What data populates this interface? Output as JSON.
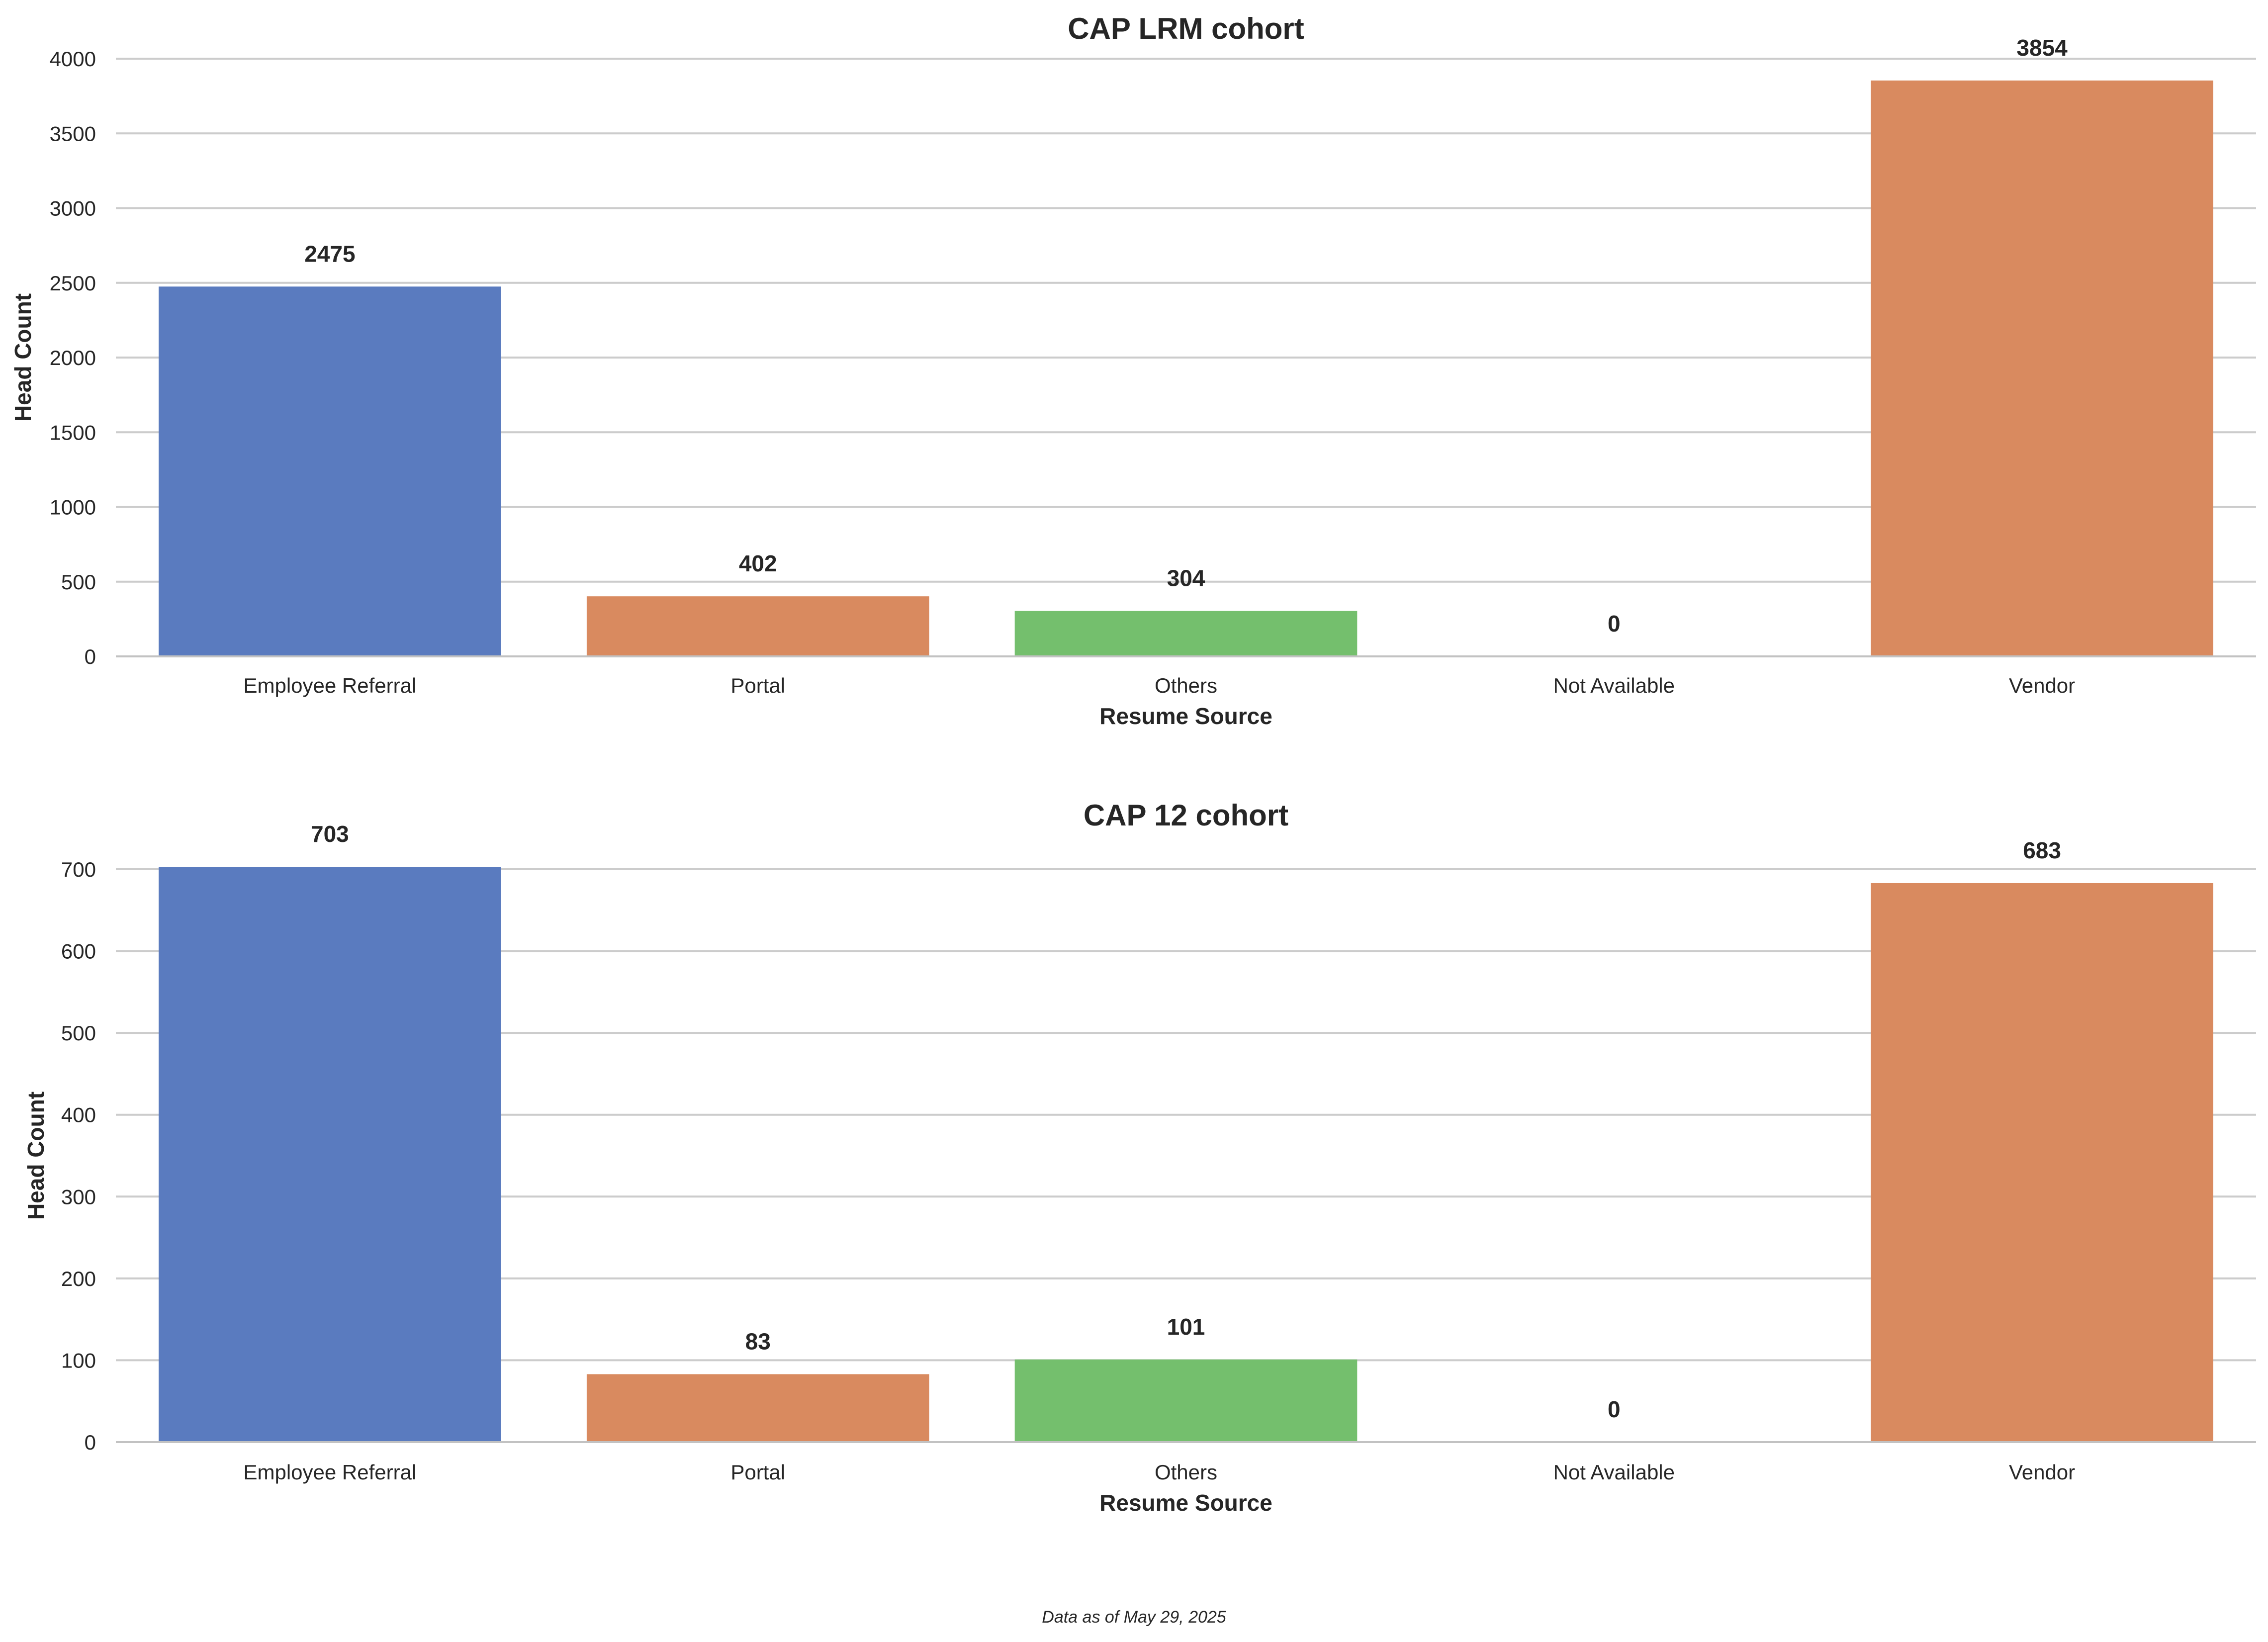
{
  "footnote": "Data as of May 29, 2025",
  "colors": {
    "blue": "#5a7bbf",
    "orange": "#d98a5f",
    "green": "#74bf6d",
    "grid": "#cccccc",
    "text": "#262626"
  },
  "chart_data": [
    {
      "type": "bar",
      "title": "CAP LRM cohort",
      "xlabel": "Resume Source",
      "ylabel": "Head Count",
      "categories": [
        "Employee Referral",
        "Portal",
        "Others",
        "Not Available",
        "Vendor"
      ],
      "values": [
        2475,
        402,
        304,
        0,
        3854
      ],
      "value_labels": [
        "2475",
        "402",
        "304",
        "0",
        "3854"
      ],
      "bar_colors": [
        "#5a7bbf",
        "#d98a5f",
        "#74bf6d",
        "#d98a5f",
        "#d98a5f"
      ],
      "ylim": [
        0,
        4000
      ],
      "yticks": [
        0,
        500,
        1000,
        1500,
        2000,
        2500,
        3000,
        3500,
        4000
      ],
      "ytick_labels": [
        "0",
        "500",
        "1000",
        "1500",
        "2000",
        "2500",
        "3000",
        "3500",
        "4000"
      ],
      "grid": true,
      "legend": "none"
    },
    {
      "type": "bar",
      "title": "CAP 12 cohort",
      "xlabel": "Resume Source",
      "ylabel": "Head Count",
      "categories": [
        "Employee Referral",
        "Portal",
        "Others",
        "Not Available",
        "Vendor"
      ],
      "values": [
        703,
        83,
        101,
        0,
        683
      ],
      "value_labels": [
        "703",
        "83",
        "101",
        "0",
        "683"
      ],
      "bar_colors": [
        "#5a7bbf",
        "#d98a5f",
        "#74bf6d",
        "#d98a5f",
        "#d98a5f"
      ],
      "ylim": [
        0,
        700
      ],
      "yticks": [
        0,
        100,
        200,
        300,
        400,
        500,
        600,
        700
      ],
      "ytick_labels": [
        "0",
        "100",
        "200",
        "300",
        "400",
        "500",
        "600",
        "700"
      ],
      "grid": true,
      "legend": "none"
    }
  ]
}
